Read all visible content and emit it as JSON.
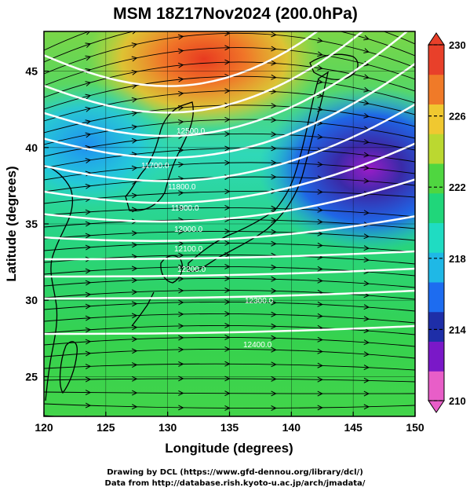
{
  "chart_data": {
    "type": "heatmap",
    "title": "MSM 18Z17Nov2024 (200.0hPa)",
    "xlabel": "Longitude (degrees)",
    "ylabel": "Latitude  (degrees)",
    "xlim": [
      120,
      150
    ],
    "ylim": [
      22.4,
      47.6
    ],
    "x_ticks": [
      120,
      125,
      130,
      135,
      140,
      145,
      150
    ],
    "y_ticks": [
      25,
      30,
      35,
      40,
      45
    ],
    "grid": true,
    "colorbar": {
      "min": 210,
      "max": 230,
      "ticks": [
        210,
        214,
        218,
        222,
        226,
        230
      ],
      "placement": "right",
      "extend": "both",
      "colors": [
        "#e85ec8",
        "#7a18c8",
        "#1e2ea8",
        "#1d6cf0",
        "#1fb8e6",
        "#1fdcc2",
        "#20d67a",
        "#4fd640",
        "#bbd830",
        "#f0c830",
        "#f07a28",
        "#e8402a"
      ]
    },
    "shading_note": "temperature-like field in K",
    "contours": [
      {
        "label": "11700.0"
      },
      {
        "label": "11800.0"
      },
      {
        "label": "11900.0"
      },
      {
        "label": "12000.0"
      },
      {
        "label": "12100.0"
      },
      {
        "label": "12200.0"
      },
      {
        "label": "12300.0"
      },
      {
        "label": "12400.0"
      },
      {
        "label": "12500.0"
      }
    ],
    "streamlines": "westerly flow, strongest near 35N"
  },
  "credits": {
    "line1": "Drawing by DCL (https://www.gfd-dennou.org/library/dcl/)",
    "line2": "Data from http://database.rish.kyoto-u.ac.jp/arch/jmadata/"
  }
}
